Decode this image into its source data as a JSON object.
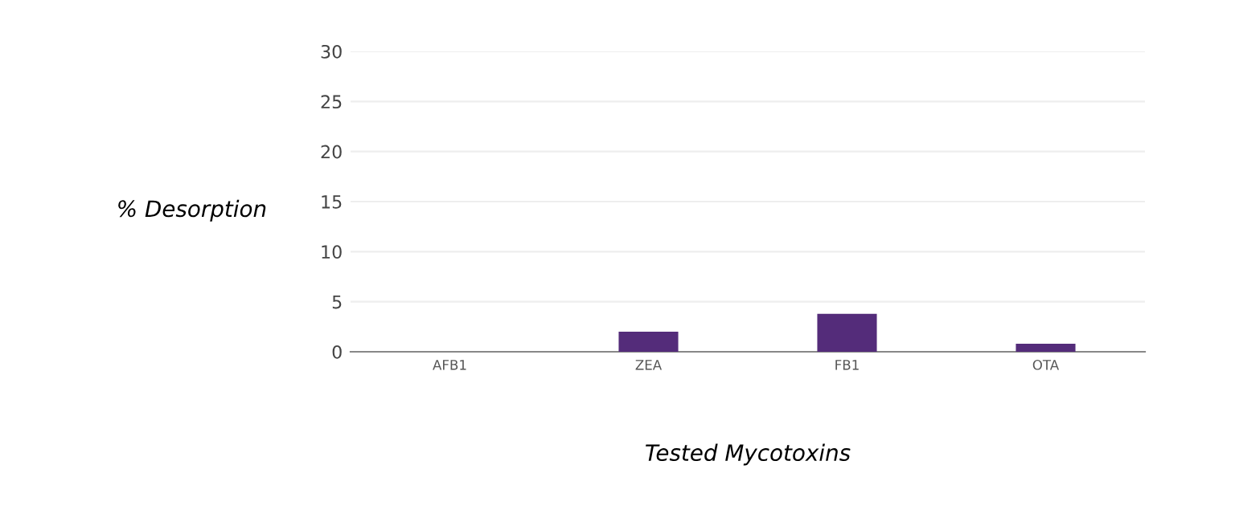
{
  "chart_data": {
    "type": "bar",
    "xlabel": "Tested Mycotoxins",
    "ylabel": "% Desorption",
    "categories": [
      "AFB1",
      "ZEA",
      "FB1",
      "OTA"
    ],
    "values": [
      0,
      2,
      3.8,
      0.8
    ],
    "color": "#542c7a",
    "ylim": [
      0,
      30
    ],
    "yticks": [
      0,
      5,
      10,
      15,
      20,
      25,
      30
    ],
    "grid": "y"
  }
}
